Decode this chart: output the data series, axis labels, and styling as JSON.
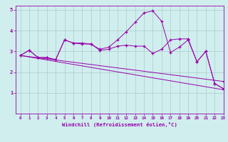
{
  "xlabel": "Windchill (Refroidissement éolien,°C)",
  "bg_color": "#d0eeee",
  "line_color": "#9900aa",
  "grid_color": "#aacccc",
  "xlim": [
    -0.5,
    23
  ],
  "ylim": [
    0,
    5.2
  ],
  "xticks": [
    0,
    1,
    2,
    3,
    4,
    5,
    6,
    7,
    8,
    9,
    10,
    11,
    12,
    13,
    14,
    15,
    16,
    17,
    18,
    19,
    20,
    21,
    22,
    23
  ],
  "yticks": [
    1,
    2,
    3,
    4,
    5
  ],
  "series": [
    {
      "x": [
        0,
        1,
        2,
        3,
        4,
        5,
        6,
        7,
        8,
        9,
        10,
        11,
        12,
        13,
        14,
        15,
        16,
        17,
        18,
        19,
        20,
        21,
        22,
        23
      ],
      "y": [
        2.8,
        3.05,
        2.7,
        2.7,
        2.6,
        3.55,
        3.4,
        3.35,
        3.35,
        3.05,
        3.1,
        3.25,
        3.3,
        3.25,
        3.25,
        2.9,
        3.1,
        3.55,
        3.6,
        3.6,
        2.5,
        3.0,
        1.45,
        1.2
      ]
    },
    {
      "x": [
        0,
        1,
        2,
        3,
        4,
        5,
        6,
        7,
        8,
        9,
        10,
        11,
        12,
        13,
        14,
        15,
        16,
        17,
        18,
        19,
        20,
        21,
        22,
        23
      ],
      "y": [
        2.8,
        3.05,
        2.7,
        2.7,
        2.6,
        3.55,
        3.4,
        3.4,
        3.35,
        3.1,
        3.2,
        3.55,
        3.95,
        4.4,
        4.85,
        4.95,
        4.45,
        2.95,
        3.2,
        3.55,
        2.5,
        3.0,
        1.45,
        1.2
      ]
    },
    {
      "x": [
        0,
        23
      ],
      "y": [
        2.8,
        1.15
      ]
    },
    {
      "x": [
        0,
        23
      ],
      "y": [
        2.8,
        1.55
      ]
    }
  ]
}
